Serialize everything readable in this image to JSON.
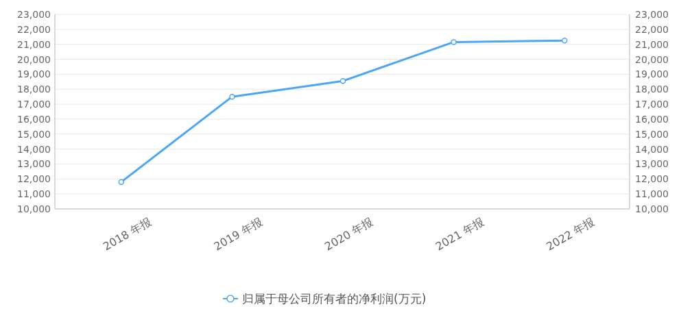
{
  "chart_data": {
    "type": "line",
    "categories": [
      "2018 年报",
      "2019 年报",
      "2020 年报",
      "2021 年报",
      "2022 年报"
    ],
    "series": [
      {
        "name": "归属于母公司所有者的净利润(万元)",
        "color": "#4da6f5",
        "values": [
          11800,
          17500,
          18550,
          21150,
          21250
        ],
        "axis": "y"
      }
    ],
    "ylim": [
      10000,
      23000
    ],
    "yticks": [
      {
        "value": 10000,
        "label": "10,000"
      },
      {
        "value": 11000,
        "label": "11,000"
      },
      {
        "value": 12000,
        "label": "12,000"
      },
      {
        "value": 13000,
        "label": "13,000"
      },
      {
        "value": 14000,
        "label": "14,000"
      },
      {
        "value": 15000,
        "label": "15,000"
      },
      {
        "value": 16000,
        "label": "16,000"
      },
      {
        "value": 17000,
        "label": "17,000"
      },
      {
        "value": 18000,
        "label": "18,000"
      },
      {
        "value": 19000,
        "label": "19,000"
      },
      {
        "value": 20000,
        "label": "20,000"
      },
      {
        "value": 21000,
        "label": "21,000"
      },
      {
        "value": 22000,
        "label": "22,000"
      },
      {
        "value": 23000,
        "label": "23,000"
      }
    ],
    "y2lim": [
      10000,
      23000
    ],
    "y2ticks": [
      {
        "value": 10000,
        "label": "10,000"
      },
      {
        "value": 11000,
        "label": "11,000"
      },
      {
        "value": 12000,
        "label": "12,000"
      },
      {
        "value": 13000,
        "label": "13,000"
      },
      {
        "value": 14000,
        "label": "14,000"
      },
      {
        "value": 15000,
        "label": "15,000"
      },
      {
        "value": 16000,
        "label": "16,000"
      },
      {
        "value": 17000,
        "label": "17,000"
      },
      {
        "value": 18000,
        "label": "18,000"
      },
      {
        "value": 19000,
        "label": "19,000"
      },
      {
        "value": 20000,
        "label": "20,000"
      },
      {
        "value": 21000,
        "label": "21,000"
      },
      {
        "value": 22000,
        "label": "22,000"
      },
      {
        "value": 23000,
        "label": "23,000"
      }
    ],
    "grid": "y",
    "legend": "bottom",
    "marker": "circle",
    "line_style": "solid"
  }
}
